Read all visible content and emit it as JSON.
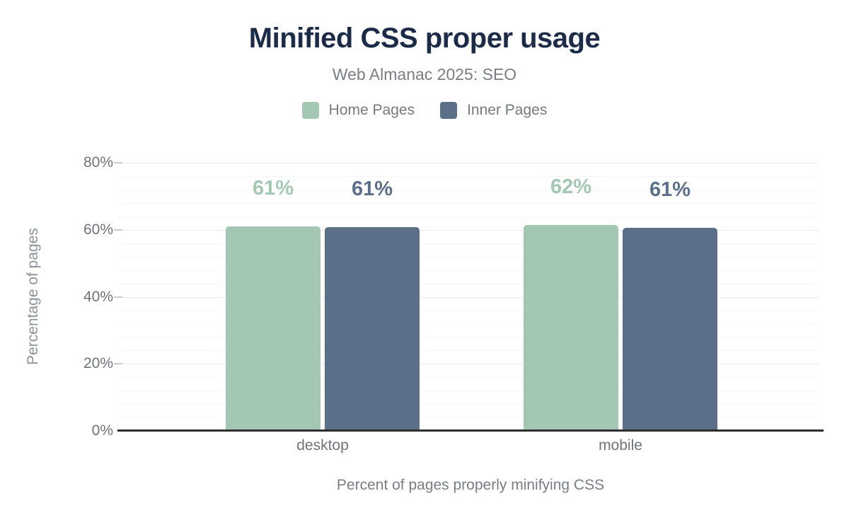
{
  "chart_data": {
    "type": "bar",
    "title": "Minified CSS proper usage",
    "subtitle": "Web Almanac 2025: SEO",
    "categories": [
      "desktop",
      "mobile"
    ],
    "series": [
      {
        "name": "Home Pages",
        "values": [
          61,
          62
        ],
        "heights_pct": [
          61.0,
          61.5
        ],
        "color": "#a4c7b3"
      },
      {
        "name": "Inner Pages",
        "values": [
          61,
          61
        ],
        "heights_pct": [
          60.8,
          60.6
        ],
        "color": "#5c6f89"
      }
    ],
    "value_suffix": "%",
    "ylabel": "Percentage of pages",
    "xlabel": "Percent of pages properly minifying CSS",
    "ylim": [
      0,
      80
    ],
    "yticks": [
      "0%",
      "20%",
      "40%",
      "60%",
      "80%"
    ],
    "grid": {
      "major_every": 20,
      "minor_every": 4,
      "visible": true
    },
    "legend_position": "top"
  },
  "colors": {
    "background": "#ffffff",
    "title": "#1b2b48",
    "subtitle": "#797d84",
    "legend_text": "#75787e",
    "tick_text": "#6f7379",
    "axis_title": "#8d9198",
    "category_text": "#6f7379",
    "caption": "#797d84",
    "axis_line": "#2d2e30",
    "grid_major": "#ebebed",
    "grid_minor": "#f6f6f8",
    "tick_mark": "#c9cbcf"
  }
}
